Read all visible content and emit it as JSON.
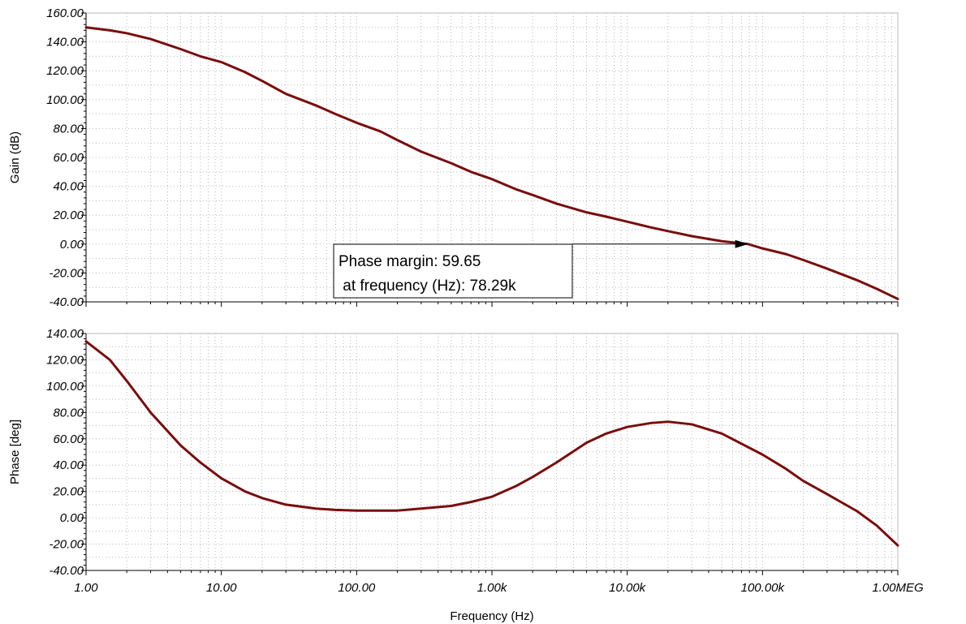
{
  "colors": {
    "curve": "#7a0d0d",
    "grid": "#b8b8b8",
    "axis": "#000000",
    "background": "#ffffff"
  },
  "chart_data": [
    {
      "type": "line",
      "id": "gain",
      "xscale": "log",
      "xlim": [
        1,
        1000000
      ],
      "ylim": [
        -40,
        160
      ],
      "ylabel": "Gain (dB)",
      "yticks": [
        -40,
        -20,
        0,
        20,
        40,
        60,
        80,
        100,
        120,
        140,
        160
      ],
      "ytick_labels": [
        "-40.00",
        "-20.00",
        "0.00",
        "20.00",
        "40.00",
        "60.00",
        "80.00",
        "100.00",
        "120.00",
        "140.00",
        "160.00"
      ],
      "grid": true,
      "series": [
        {
          "x": [
            1,
            1.5,
            2,
            3,
            5,
            7,
            10,
            15,
            20,
            30,
            50,
            70,
            100,
            150,
            200,
            300,
            500,
            700,
            1000,
            1500,
            2000,
            3000,
            5000,
            7000,
            10000,
            15000,
            20000,
            30000,
            50000,
            78290,
            100000,
            150000,
            200000,
            300000,
            500000,
            700000,
            1000000
          ],
          "y": [
            150,
            148,
            146,
            142,
            135,
            130,
            126,
            119,
            113,
            104,
            96,
            90,
            84,
            78,
            72,
            64,
            56,
            50,
            45,
            38,
            34,
            28,
            22,
            19,
            15.5,
            11.5,
            9,
            5.5,
            2,
            0,
            -3,
            -7,
            -11,
            -17,
            -25,
            -31,
            -38
          ]
        }
      ],
      "annotation": {
        "line1": "Phase margin: 59.65",
        "line2": " at frequency (Hz): 78.29k",
        "x": 78290,
        "y": 0
      }
    },
    {
      "type": "line",
      "id": "phase",
      "xscale": "log",
      "xlim": [
        1,
        1000000
      ],
      "ylim": [
        -40,
        140
      ],
      "ylabel": "Phase [deg]",
      "xlabel": "Frequency (Hz)",
      "yticks": [
        -40,
        -20,
        0,
        20,
        40,
        60,
        80,
        100,
        120,
        140
      ],
      "ytick_labels": [
        "-40.00",
        "-20.00",
        "0.00",
        "20.00",
        "40.00",
        "60.00",
        "80.00",
        "100.00",
        "120.00",
        "140.00"
      ],
      "xticks": [
        1,
        10,
        100,
        1000,
        10000,
        100000,
        1000000
      ],
      "xtick_labels": [
        "1.00",
        "10.00",
        "100.00",
        "1.00k",
        "10.00k",
        "100.00k",
        "1.00MEG"
      ],
      "grid": true,
      "series": [
        {
          "x": [
            1,
            1.5,
            2,
            3,
            5,
            7,
            10,
            15,
            20,
            30,
            50,
            70,
            100,
            150,
            200,
            300,
            500,
            700,
            1000,
            1500,
            2000,
            3000,
            5000,
            7000,
            10000,
            15000,
            20000,
            30000,
            50000,
            100000,
            150000,
            200000,
            300000,
            500000,
            700000,
            1000000
          ],
          "y": [
            134,
            120,
            104,
            80,
            55,
            42,
            30,
            20,
            15,
            10,
            7,
            6,
            5.5,
            5.5,
            5.5,
            7,
            9,
            12,
            16,
            24,
            31,
            42,
            57,
            64,
            69,
            72,
            73,
            71,
            64,
            48,
            37,
            28,
            18,
            5,
            -6,
            -21
          ]
        }
      ]
    }
  ]
}
